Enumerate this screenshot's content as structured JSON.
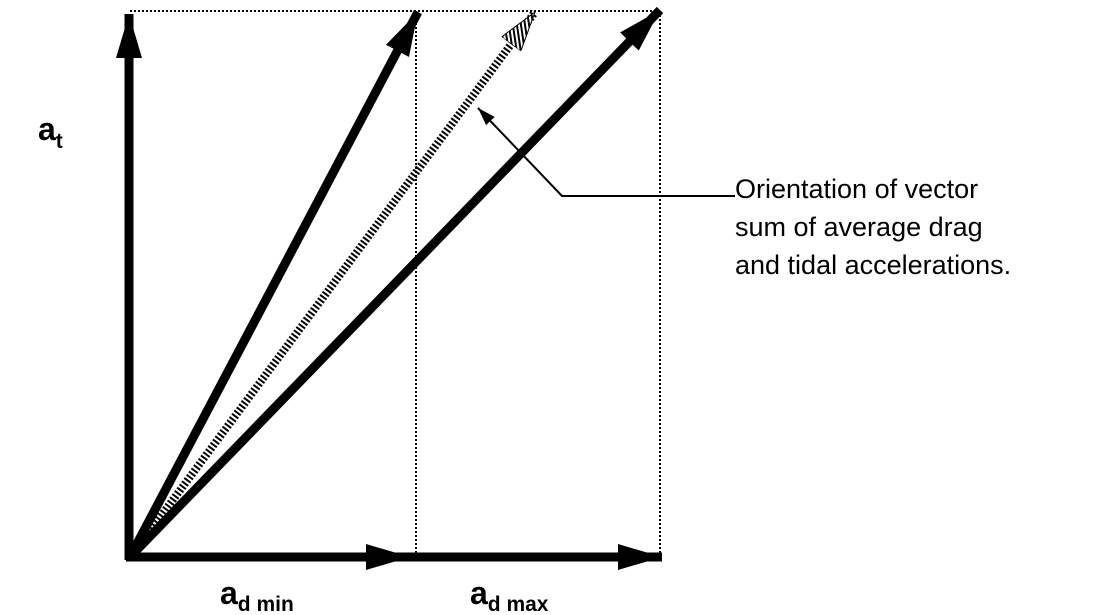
{
  "labels": {
    "tidal": {
      "main": "a",
      "sub": "t"
    },
    "drag_min": {
      "main": "a",
      "sub": "d min"
    },
    "drag_max": {
      "main": "a",
      "sub": "d max"
    }
  },
  "annotation": {
    "lines": [
      "Orientation of vector",
      "sum of average drag",
      "and tidal accelerations."
    ]
  }
}
